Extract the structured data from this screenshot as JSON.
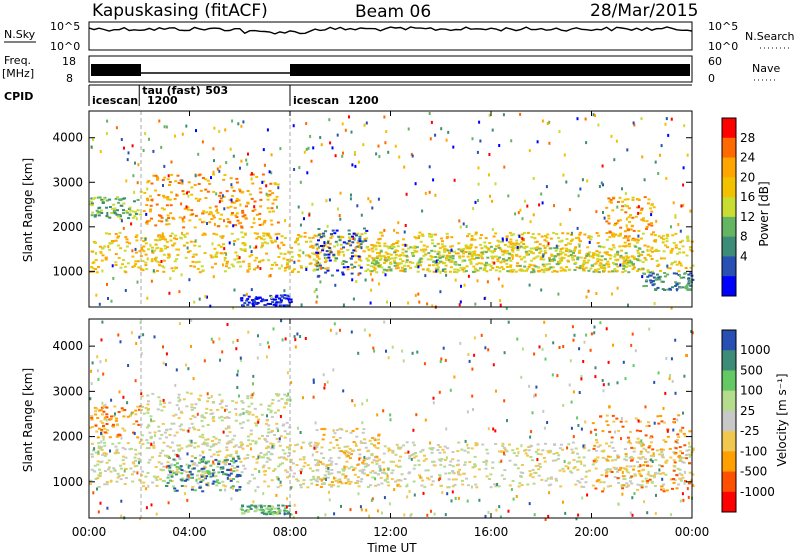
{
  "header": {
    "station": "Kapuskasing (fitACF)",
    "beam": "Beam 06",
    "date": "28/Mar/2015"
  },
  "summary_panels": {
    "nsky_label": "N.Sky",
    "nsky_ticks": [
      "10^5",
      "10^0"
    ],
    "nsearch_label": "N.Search",
    "nsearch_ticks": [
      "10^5",
      "10^0"
    ],
    "freq_label": "Freq.",
    "freq_unit": "[MHz]",
    "freq_ticks": [
      "18",
      "8"
    ],
    "nave_label": "Nave",
    "nave_ticks": [
      "60",
      "0"
    ],
    "cpid_label": "CPID",
    "cpid_segments": [
      {
        "name": "icescan",
        "value": "1200",
        "start_h": 0.0,
        "end_h": 2.0
      },
      {
        "name": "tau (fast)",
        "value": "503",
        "start_h": 2.0,
        "end_h": 8.0
      },
      {
        "name": "icescan",
        "value": "1200",
        "start_h": 8.0,
        "end_h": 24.0
      }
    ]
  },
  "chart_data": [
    {
      "type": "heatmap",
      "title": "",
      "xlabel": "",
      "ylabel": "Slant Range [km]",
      "xlim": [
        0,
        24
      ],
      "ylim": [
        200,
        4600
      ],
      "yticks": [
        1000,
        2000,
        3000,
        4000
      ],
      "colorbar_label": "Power [dB]",
      "colorbar_ticks": [
        "28",
        "24",
        "20",
        "16",
        "12",
        "8",
        "4"
      ],
      "colorbar_colors": [
        "#ff0000",
        "#ff6a00",
        "#ffa500",
        "#f2c200",
        "#c8dc32",
        "#64b464",
        "#3c8c78",
        "#2850b4",
        "#0000ff"
      ],
      "regions": [
        {
          "t0": 0.0,
          "t1": 24.0,
          "r0": 1000,
          "r1": 1900,
          "level": 3
        },
        {
          "t0": 0.0,
          "t1": 2.0,
          "r0": 2200,
          "r1": 2700,
          "level": 5
        },
        {
          "t0": 2.0,
          "t1": 7.5,
          "r0": 2000,
          "r1": 3200,
          "level": 2
        },
        {
          "t0": 6.0,
          "t1": 8.0,
          "r0": 250,
          "r1": 500,
          "level": 8
        },
        {
          "t0": 9.0,
          "t1": 11.0,
          "r0": 900,
          "r1": 2000,
          "level": 7
        },
        {
          "t0": 11.0,
          "t1": 22.0,
          "r0": 1000,
          "r1": 1600,
          "level": 4
        },
        {
          "t0": 20.5,
          "t1": 22.5,
          "r0": 1700,
          "r1": 2700,
          "level": 2
        },
        {
          "t0": 22.0,
          "t1": 24.0,
          "r0": 600,
          "r1": 1000,
          "level": 6
        }
      ]
    },
    {
      "type": "heatmap",
      "title": "",
      "xlabel": "Time UT",
      "ylabel": "Slant Range [km]",
      "xlim": [
        0,
        24
      ],
      "ylim": [
        200,
        4600
      ],
      "yticks": [
        1000,
        2000,
        3000,
        4000
      ],
      "xticks": [
        "00:00",
        "04:00",
        "08:00",
        "12:00",
        "16:00",
        "20:00",
        "00:00"
      ],
      "colorbar_label": "Velocity [m s⁻¹]",
      "colorbar_ticks": [
        "1000",
        "500",
        "100",
        "25",
        "-25",
        "-100",
        "-500",
        "-1000"
      ],
      "colorbar_colors": [
        "#2850b4",
        "#3c8c78",
        "#64c864",
        "#b4dc8c",
        "#c8c8c8",
        "#f0c850",
        "#ffa000",
        "#ff5000",
        "#ff0000"
      ],
      "regions": [
        {
          "t0": 0.0,
          "t1": 24.0,
          "r0": 900,
          "r1": 1900,
          "level": 4
        },
        {
          "t0": 0.0,
          "t1": 2.0,
          "r0": 2000,
          "r1": 2700,
          "level": 6
        },
        {
          "t0": 2.0,
          "t1": 8.0,
          "r0": 1800,
          "r1": 3000,
          "level": 4
        },
        {
          "t0": 3.0,
          "t1": 6.0,
          "r0": 800,
          "r1": 1600,
          "level": 1
        },
        {
          "t0": 6.0,
          "t1": 8.0,
          "r0": 300,
          "r1": 500,
          "level": 2
        },
        {
          "t0": 9.0,
          "t1": 11.5,
          "r0": 900,
          "r1": 2200,
          "level": 5
        },
        {
          "t0": 20.0,
          "t1": 24.0,
          "r0": 800,
          "r1": 2500,
          "level": 6
        }
      ]
    }
  ]
}
